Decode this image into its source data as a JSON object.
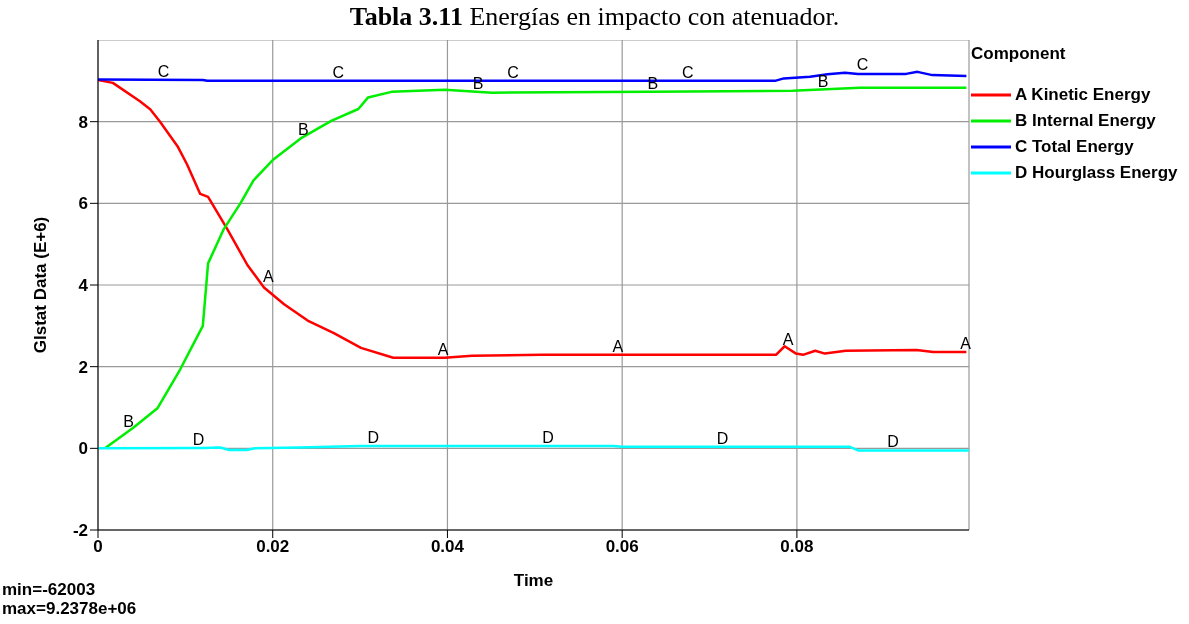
{
  "chart_data": {
    "type": "line",
    "title": "Tabla 3.11 Energías en impacto con atenuador.",
    "xlabel": "Time",
    "ylabel": "Glstat Data (E+6)",
    "legend_title": "Component",
    "legend": "top right",
    "grid": true,
    "marker": "none",
    "line_style": "solid",
    "xlim": [
      0,
      0.0997
    ],
    "xticks": [
      0,
      0.02,
      0.04,
      0.06,
      0.08
    ],
    "ylim": [
      -2,
      10
    ],
    "yticks": [
      -2,
      0,
      2,
      4,
      6,
      8
    ],
    "series": [
      {
        "name": "A Kinetic Energy",
        "color": "#ff0000",
        "x": [
          0,
          0.0017,
          0.0048,
          0.006,
          0.0071,
          0.0091,
          0.0102,
          0.0117,
          0.0126,
          0.0148,
          0.0171,
          0.019,
          0.0213,
          0.024,
          0.027,
          0.0301,
          0.0338,
          0.0397,
          0.0428,
          0.0508,
          0.0776,
          0.0786,
          0.0799,
          0.0807,
          0.0821,
          0.0832,
          0.0856,
          0.0937,
          0.0956,
          0.0994
        ],
        "values": [
          9.02,
          8.95,
          8.5,
          8.3,
          8.0,
          7.4,
          6.95,
          6.23,
          6.16,
          5.37,
          4.49,
          3.94,
          3.53,
          3.13,
          2.82,
          2.46,
          2.22,
          2.22,
          2.27,
          2.29,
          2.29,
          2.5,
          2.32,
          2.29,
          2.39,
          2.32,
          2.39,
          2.41,
          2.36,
          2.36
        ]
      },
      {
        "name": "B Internal Energy",
        "color": "#00ee00",
        "x": [
          0.0008,
          0.004,
          0.0068,
          0.0094,
          0.012,
          0.0126,
          0.0144,
          0.0163,
          0.0178,
          0.02,
          0.0232,
          0.0267,
          0.0298,
          0.0309,
          0.0336,
          0.0397,
          0.0451,
          0.0634,
          0.0795,
          0.0872,
          0.0994
        ],
        "values": [
          0,
          0.5,
          0.98,
          1.93,
          3.0,
          4.53,
          5.37,
          6.0,
          6.56,
          7.06,
          7.59,
          8.02,
          8.31,
          8.59,
          8.73,
          8.78,
          8.71,
          8.73,
          8.76,
          8.83,
          8.83
        ]
      },
      {
        "name": "C Total Energy",
        "color": "#0000ff",
        "x": [
          0,
          0.012,
          0.0125,
          0.0775,
          0.0785,
          0.0815,
          0.0835,
          0.0855,
          0.087,
          0.0925,
          0.0938,
          0.0955,
          0.0994
        ],
        "values": [
          9.03,
          9.02,
          9.0,
          9.0,
          9.06,
          9.1,
          9.16,
          9.2,
          9.17,
          9.17,
          9.22,
          9.14,
          9.12
        ]
      },
      {
        "name": "D Hourglass Energy",
        "color": "#00ffff",
        "x": [
          0,
          0.012,
          0.014,
          0.015,
          0.017,
          0.018,
          0.023,
          0.03,
          0.059,
          0.06,
          0.086,
          0.087,
          0.0997
        ],
        "values": [
          0,
          0.01,
          0.02,
          -0.04,
          -0.04,
          0,
          0.02,
          0.06,
          0.06,
          0.04,
          0.04,
          -0.05,
          -0.05
        ]
      }
    ],
    "annotations": [
      {
        "text": "A",
        "x": 0.0195,
        "y": 4.0
      },
      {
        "text": "A",
        "x": 0.0395,
        "y": 2.22
      },
      {
        "text": "A",
        "x": 0.0595,
        "y": 2.29
      },
      {
        "text": "A",
        "x": 0.079,
        "y": 2.45
      },
      {
        "text": "A",
        "x": 0.0993,
        "y": 2.36
      },
      {
        "text": "B",
        "x": 0.0035,
        "y": 0.45
      },
      {
        "text": "B",
        "x": 0.0235,
        "y": 7.6
      },
      {
        "text": "B",
        "x": 0.0435,
        "y": 8.72
      },
      {
        "text": "B",
        "x": 0.0635,
        "y": 8.73
      },
      {
        "text": "B",
        "x": 0.083,
        "y": 8.77
      },
      {
        "text": "C",
        "x": 0.0075,
        "y": 9.03
      },
      {
        "text": "C",
        "x": 0.0275,
        "y": 9.0
      },
      {
        "text": "C",
        "x": 0.0475,
        "y": 9.0
      },
      {
        "text": "C",
        "x": 0.0675,
        "y": 9.0
      },
      {
        "text": "C",
        "x": 0.0875,
        "y": 9.18
      },
      {
        "text": "D",
        "x": 0.0115,
        "y": 0.01
      },
      {
        "text": "D",
        "x": 0.0315,
        "y": 0.06
      },
      {
        "text": "D",
        "x": 0.0515,
        "y": 0.06
      },
      {
        "text": "D",
        "x": 0.0715,
        "y": 0.04
      },
      {
        "text": "D",
        "x": 0.091,
        "y": -0.05
      },
      "min=-62003",
      "max=9.2378e+06"
    ]
  }
}
